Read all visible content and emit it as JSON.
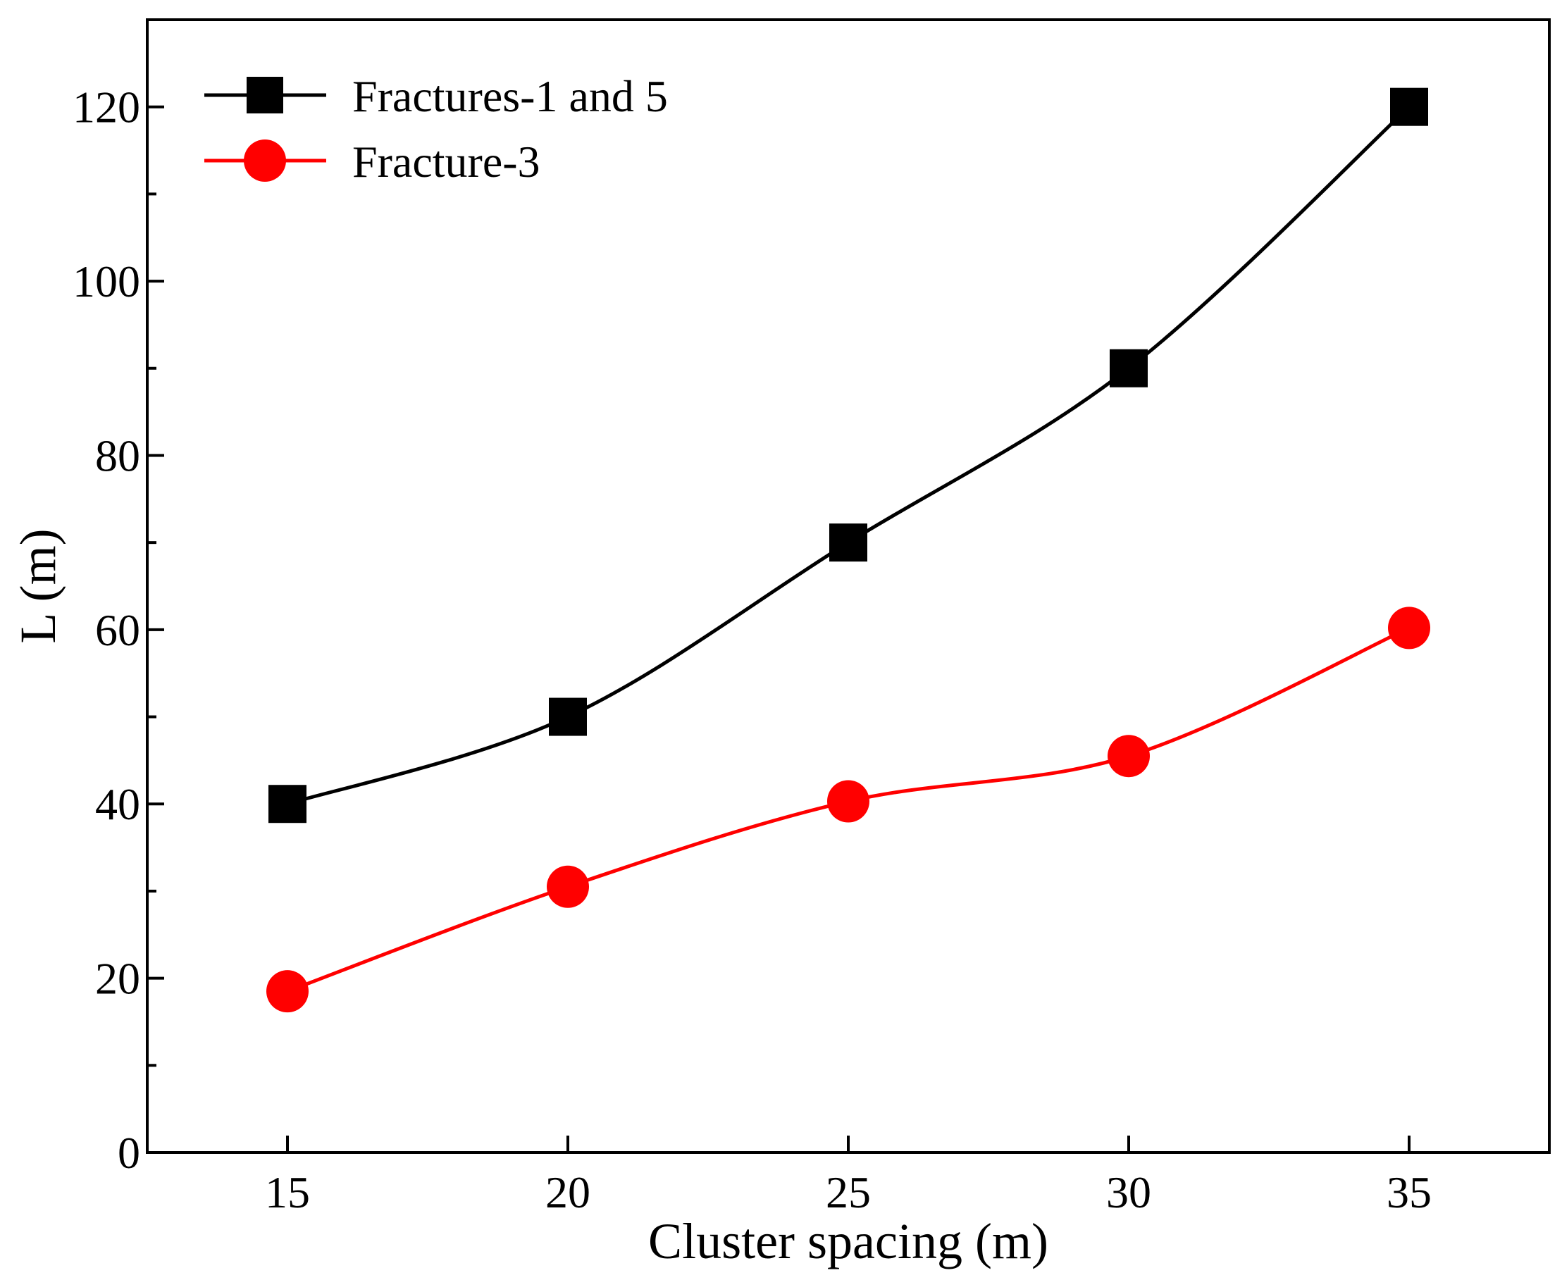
{
  "chart_data": {
    "type": "line",
    "title": "",
    "xlabel": "Cluster spacing (m)",
    "ylabel": "L (m)",
    "xlim": [
      12.5,
      37.5
    ],
    "ylim": [
      0,
      130
    ],
    "x_ticks": [
      15,
      20,
      25,
      30,
      35
    ],
    "x_tick_labels": [
      "15",
      "20",
      "25",
      "30",
      "35"
    ],
    "y_ticks": [
      0,
      20,
      40,
      60,
      80,
      100,
      120
    ],
    "y_tick_labels": [
      "0",
      "20",
      "40",
      "60",
      "80",
      "100",
      "120"
    ],
    "y_minor_step": 10,
    "x": [
      15,
      20,
      25,
      30,
      35
    ],
    "series": [
      {
        "name": "Fractures-1 and 5",
        "values": [
          40,
          50,
          70,
          90,
          120
        ],
        "color": "#000000",
        "marker": "square"
      },
      {
        "name": "Fracture-3",
        "values": [
          18.5,
          30.5,
          40.3,
          45.5,
          60.2
        ],
        "color": "#ff0000",
        "marker": "circle"
      }
    ],
    "legend": {
      "position": "top-left"
    },
    "grid": false
  }
}
